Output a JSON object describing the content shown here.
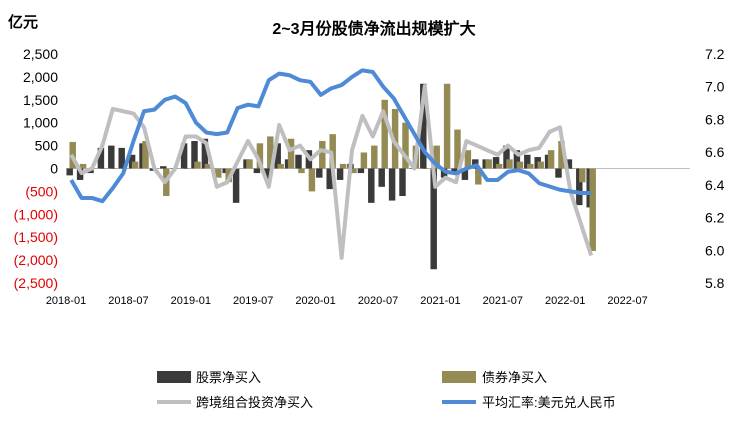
{
  "chart_data": {
    "type": "bar",
    "title": "2~3月份股债净流出规模扩大",
    "ylabel_left": "亿元",
    "y_left": {
      "min": -2500,
      "max": 2500,
      "step": 500,
      "ticks": [
        "(2,500)",
        "(2,000)",
        "(1,500)",
        "(1,000)",
        "(500)",
        "0",
        "500",
        "1,000",
        "1,500",
        "2,000",
        "2,500"
      ]
    },
    "y_right": {
      "min": 5.8,
      "max": 7.2,
      "step": 0.2,
      "ticks": [
        "5.8",
        "6.0",
        "6.2",
        "6.4",
        "6.6",
        "6.8",
        "7.0",
        "7.2"
      ]
    },
    "x_range": [
      "2018-01",
      "2022-12"
    ],
    "x_ticks": [
      "2018-01",
      "2018-07",
      "2019-01",
      "2019-07",
      "2020-01",
      "2020-07",
      "2021-01",
      "2021-07",
      "2022-01",
      "2022-07"
    ],
    "categories": [
      "2018-01",
      "2018-02",
      "2018-03",
      "2018-04",
      "2018-05",
      "2018-06",
      "2018-07",
      "2018-08",
      "2018-09",
      "2018-10",
      "2018-11",
      "2018-12",
      "2019-01",
      "2019-02",
      "2019-03",
      "2019-04",
      "2019-05",
      "2019-06",
      "2019-07",
      "2019-08",
      "2019-09",
      "2019-10",
      "2019-11",
      "2019-12",
      "2020-01",
      "2020-02",
      "2020-03",
      "2020-04",
      "2020-05",
      "2020-06",
      "2020-07",
      "2020-08",
      "2020-09",
      "2020-10",
      "2020-11",
      "2020-12",
      "2021-01",
      "2021-02",
      "2021-03",
      "2021-04",
      "2021-05",
      "2021-06",
      "2021-07",
      "2021-08",
      "2021-09",
      "2021-10",
      "2021-11",
      "2021-12",
      "2022-01",
      "2022-02",
      "2022-03"
    ],
    "series": [
      {
        "name": "股票净买入",
        "type": "bar",
        "color": "#3a3a3a",
        "axis": "left",
        "values": [
          -150,
          -250,
          -100,
          450,
          500,
          450,
          300,
          550,
          -50,
          50,
          0,
          550,
          600,
          650,
          0,
          -100,
          -750,
          200,
          -100,
          -250,
          550,
          200,
          300,
          400,
          -200,
          -450,
          -250,
          100,
          -100,
          -750,
          -400,
          -700,
          -600,
          0,
          1850,
          -2200,
          -200,
          -100,
          -250,
          200,
          200,
          250,
          500,
          400,
          300,
          250,
          300,
          -200,
          200,
          -800,
          -850
        ]
      },
      {
        "name": "债券净买入",
        "type": "bar",
        "color": "#948a54",
        "axis": "left",
        "values": [
          580,
          100,
          0,
          0,
          0,
          0,
          150,
          600,
          0,
          -600,
          0,
          0,
          150,
          100,
          -200,
          -300,
          0,
          200,
          550,
          700,
          100,
          650,
          -100,
          -500,
          600,
          750,
          100,
          -100,
          350,
          500,
          1500,
          1300,
          1000,
          500,
          0,
          500,
          1850,
          850,
          400,
          -350,
          200,
          100,
          200,
          150,
          100,
          150,
          400,
          600,
          0,
          -300,
          -1800
        ]
      },
      {
        "name": "跨境组合投资净买入",
        "type": "line",
        "color": "#bfbfbf",
        "axis": "left",
        "values": [
          300,
          -100,
          0,
          500,
          1300,
          1250,
          1200,
          900,
          0,
          -300,
          0,
          700,
          700,
          550,
          -400,
          -300,
          150,
          600,
          200,
          -400,
          950,
          400,
          500,
          200,
          400,
          350,
          -1950,
          400,
          1150,
          700,
          1250,
          600,
          300,
          0,
          1800,
          -400,
          -200,
          -300,
          600,
          500,
          400,
          300,
          500,
          300,
          400,
          450,
          800,
          900,
          -500,
          -1200,
          -1900
        ]
      },
      {
        "name": "平均汇率:美元兑人民币",
        "type": "line",
        "color": "#4f8ad6",
        "axis": "right",
        "values": [
          6.43,
          6.32,
          6.32,
          6.3,
          6.38,
          6.47,
          6.67,
          6.85,
          6.86,
          6.92,
          6.94,
          6.9,
          6.78,
          6.72,
          6.71,
          6.72,
          6.87,
          6.89,
          6.88,
          7.04,
          7.08,
          7.07,
          7.04,
          7.03,
          6.95,
          6.99,
          7.01,
          7.06,
          7.1,
          7.09,
          7.0,
          6.93,
          6.82,
          6.71,
          6.6,
          6.53,
          6.48,
          6.47,
          6.5,
          6.52,
          6.43,
          6.43,
          6.48,
          6.49,
          6.47,
          6.41,
          6.39,
          6.37,
          6.36,
          6.35,
          6.35
        ]
      }
    ],
    "legend": {
      "position": "bottom"
    }
  }
}
